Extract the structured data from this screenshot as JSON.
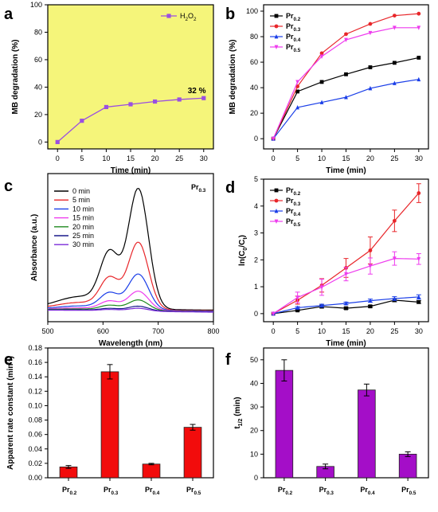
{
  "chart_data": [
    {
      "panel": "a",
      "type": "line",
      "xlabel": "Time (min)",
      "ylabel": "MB degradation (%)",
      "xlim": [
        -2,
        32
      ],
      "ylim": [
        -5,
        100
      ],
      "xticks": [
        0,
        5,
        10,
        15,
        20,
        25,
        30
      ],
      "yticks": [
        0,
        20,
        40,
        60,
        80,
        100
      ],
      "background": "#f5f57a",
      "legend_position": "top-right",
      "series": [
        {
          "name": "H2O2",
          "label_main": "H",
          "label_sub1": "2",
          "label_mid": "O",
          "label_sub2": "2",
          "color": "#9b4fe0",
          "marker": "square",
          "x": [
            0,
            5,
            10,
            15,
            20,
            25,
            30
          ],
          "y": [
            0,
            15.5,
            25.5,
            27.5,
            29.5,
            31,
            32
          ]
        }
      ],
      "annotation": "32 %"
    },
    {
      "panel": "b",
      "type": "line",
      "xlabel": "Time (min)",
      "ylabel": "MB degradation (%)",
      "xlim": [
        -2,
        32
      ],
      "ylim": [
        -8,
        105
      ],
      "xticks": [
        0,
        5,
        10,
        15,
        20,
        25,
        30
      ],
      "yticks": [
        0,
        20,
        40,
        60,
        80,
        100
      ],
      "legend_position": "top-left",
      "series": [
        {
          "name": "Pr0.2",
          "label_main": "Pr",
          "label_sub": "0.2",
          "color": "#000000",
          "marker": "square",
          "x": [
            0,
            5,
            10,
            15,
            20,
            25,
            30
          ],
          "y": [
            0,
            37,
            44.5,
            50.5,
            56,
            59.5,
            63.5
          ]
        },
        {
          "name": "Pr0.3",
          "label_main": "Pr",
          "label_sub": "0.3",
          "color": "#e8262a",
          "marker": "circle",
          "x": [
            0,
            5,
            10,
            15,
            20,
            25,
            30
          ],
          "y": [
            0,
            41,
            67,
            82,
            90,
            96.5,
            98
          ]
        },
        {
          "name": "Pr0.4",
          "label_main": "Pr",
          "label_sub": "0.4",
          "color": "#1a3ee8",
          "marker": "triangle-up",
          "x": [
            0,
            5,
            10,
            15,
            20,
            25,
            30
          ],
          "y": [
            0,
            24.5,
            28.5,
            32.5,
            39.5,
            43.5,
            46.5
          ]
        },
        {
          "name": "Pr0.5",
          "label_main": "Pr",
          "label_sub": "0.5",
          "color": "#ee3cee",
          "marker": "triangle-down",
          "x": [
            0,
            5,
            10,
            15,
            20,
            25,
            30
          ],
          "y": [
            0,
            44.5,
            64.5,
            77.5,
            83,
            87,
            87
          ]
        }
      ]
    },
    {
      "panel": "c",
      "type": "line",
      "xlabel": "Wavelength (nm)",
      "ylabel": "Absorbance (a.u.)",
      "xlim": [
        500,
        800
      ],
      "xticks": [
        500,
        600,
        700,
        800
      ],
      "y_ticks_shown": false,
      "tag_main": "Pr",
      "tag_sub": "0.3",
      "legend_position": "top-left",
      "series": [
        {
          "name": "0 min",
          "color": "#000000",
          "peak": 1.0
        },
        {
          "name": "5 min",
          "color": "#e8262a",
          "peak": 0.56
        },
        {
          "name": "10 min",
          "color": "#1a3ee8",
          "peak": 0.3
        },
        {
          "name": "15 min",
          "color": "#ee3cee",
          "peak": 0.16
        },
        {
          "name": "20 min",
          "color": "#1f8a1f",
          "peak": 0.09
        },
        {
          "name": "25 min",
          "color": "#1a1a8c",
          "peak": 0.04
        },
        {
          "name": "30 min",
          "color": "#7a2ad8",
          "peak": 0.025
        }
      ]
    },
    {
      "panel": "d",
      "type": "line",
      "xlabel": "Time (min)",
      "ylabel_parts": [
        "ln(C",
        "0",
        "/C",
        "t",
        ")"
      ],
      "xlim": [
        -2,
        32
      ],
      "ylim": [
        -0.3,
        5
      ],
      "xticks": [
        0,
        5,
        10,
        15,
        20,
        25,
        30
      ],
      "yticks": [
        0,
        1,
        2,
        3,
        4,
        5
      ],
      "legend_position": "top-left",
      "series": [
        {
          "name": "Pr0.2",
          "label_main": "Pr",
          "label_sub": "0.2",
          "color": "#000000",
          "marker": "square",
          "x": [
            0,
            5,
            10,
            15,
            20,
            25,
            30
          ],
          "y": [
            0,
            0.12,
            0.26,
            0.2,
            0.27,
            0.5,
            0.43
          ],
          "err": [
            0,
            0.03,
            0.05,
            0.04,
            0.04,
            0.06,
            0.05
          ]
        },
        {
          "name": "Pr0.3",
          "label_main": "Pr",
          "label_sub": "0.3",
          "color": "#e8262a",
          "marker": "circle",
          "x": [
            0,
            5,
            10,
            15,
            20,
            25,
            30
          ],
          "y": [
            0,
            0.5,
            1.05,
            1.7,
            2.35,
            3.45,
            4.48
          ],
          "err": [
            0,
            0.15,
            0.25,
            0.35,
            0.5,
            0.4,
            0.35
          ]
        },
        {
          "name": "Pr0.4",
          "label_main": "Pr",
          "label_sub": "0.4",
          "color": "#1a3ee8",
          "marker": "triangle-up",
          "x": [
            0,
            5,
            10,
            15,
            20,
            25,
            30
          ],
          "y": [
            0,
            0.22,
            0.3,
            0.38,
            0.48,
            0.56,
            0.62
          ],
          "err": [
            0,
            0.04,
            0.05,
            0.05,
            0.06,
            0.07,
            0.08
          ]
        },
        {
          "name": "Pr0.5",
          "label_main": "Pr",
          "label_sub": "0.5",
          "color": "#ee3cee",
          "marker": "triangle-down",
          "x": [
            0,
            5,
            10,
            15,
            20,
            25,
            30
          ],
          "y": [
            0,
            0.6,
            0.98,
            1.47,
            1.77,
            2.05,
            2.03
          ],
          "err": [
            0,
            0.2,
            0.3,
            0.25,
            0.3,
            0.25,
            0.2
          ]
        }
      ]
    },
    {
      "panel": "e",
      "type": "bar",
      "ylabel_parts": [
        "Apparent rate constant (min",
        "-1",
        ")"
      ],
      "ylim": [
        0,
        0.18
      ],
      "yticks": [
        0,
        0.02,
        0.04,
        0.06,
        0.08,
        0.1,
        0.12,
        0.14,
        0.16,
        0.18
      ],
      "ytick_labels": [
        "0.00",
        "0.02",
        "0.04",
        "0.06",
        "0.08",
        "0.10",
        "0.12",
        "0.14",
        "0.16",
        "0.18"
      ],
      "bar_color": "#f20c0c",
      "categories": [
        "Pr0.2",
        "Pr0.3",
        "Pr0.4",
        "Pr0.5"
      ],
      "cat_main": [
        "Pr",
        "Pr",
        "Pr",
        "Pr"
      ],
      "cat_sub": [
        "0.2",
        "0.3",
        "0.4",
        "0.5"
      ],
      "values": [
        0.015,
        0.147,
        0.019,
        0.07
      ],
      "err": [
        0.002,
        0.01,
        0.001,
        0.004
      ]
    },
    {
      "panel": "f",
      "type": "bar",
      "ylabel_parts": [
        "t",
        "1/2",
        " (min)"
      ],
      "ylim": [
        0,
        55
      ],
      "yticks": [
        0,
        10,
        20,
        30,
        40,
        50
      ],
      "bar_color": "#a40ec8",
      "categories": [
        "Pr0.2",
        "Pr0.3",
        "Pr0.4",
        "Pr0.5"
      ],
      "cat_main": [
        "Pr",
        "Pr",
        "Pr",
        "Pr"
      ],
      "cat_sub": [
        "0.2",
        "0.3",
        "0.4",
        "0.5"
      ],
      "values": [
        45.5,
        4.8,
        37.2,
        10.0
      ],
      "err": [
        4.5,
        1.0,
        2.5,
        1.0
      ]
    }
  ]
}
